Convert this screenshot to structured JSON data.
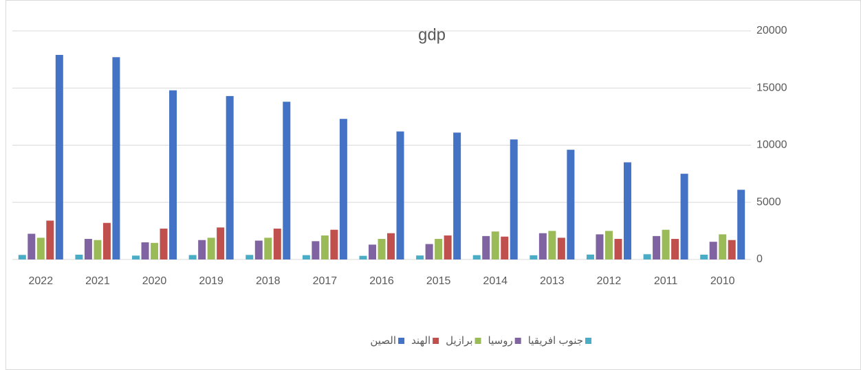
{
  "chart_data": {
    "type": "bar",
    "title": "gdp",
    "categories": [
      "2022",
      "2021",
      "2020",
      "2019",
      "2018",
      "2017",
      "2016",
      "2015",
      "2014",
      "2013",
      "2012",
      "2011",
      "2010"
    ],
    "series": [
      {
        "name": "الصين",
        "color": "#4472c4",
        "values": [
          17900,
          17700,
          14800,
          14300,
          13800,
          12300,
          11200,
          11100,
          10500,
          9600,
          8500,
          7500,
          6100
        ]
      },
      {
        "name": "الهند",
        "color": "#c0504d",
        "values": [
          3400,
          3200,
          2700,
          2800,
          2700,
          2600,
          2300,
          2100,
          2000,
          1900,
          1800,
          1800,
          1700
        ]
      },
      {
        "name": "برازيل",
        "color": "#9bbb59",
        "values": [
          1900,
          1700,
          1450,
          1900,
          1900,
          2100,
          1800,
          1800,
          2450,
          2500,
          2500,
          2600,
          2200
        ]
      },
      {
        "name": "روسيا",
        "color": "#8064a2",
        "values": [
          2250,
          1800,
          1500,
          1700,
          1650,
          1600,
          1300,
          1350,
          2050,
          2300,
          2200,
          2050,
          1550
        ]
      },
      {
        "name": "جنوب افريقيا",
        "color": "#4bacc6",
        "values": [
          400,
          420,
          340,
          390,
          400,
          380,
          320,
          350,
          380,
          370,
          430,
          460,
          420
        ]
      }
    ],
    "ylim": [
      0,
      20000
    ],
    "yticks": [
      0,
      5000,
      10000,
      15000,
      20000
    ],
    "grid": true,
    "legend": "bottom"
  }
}
